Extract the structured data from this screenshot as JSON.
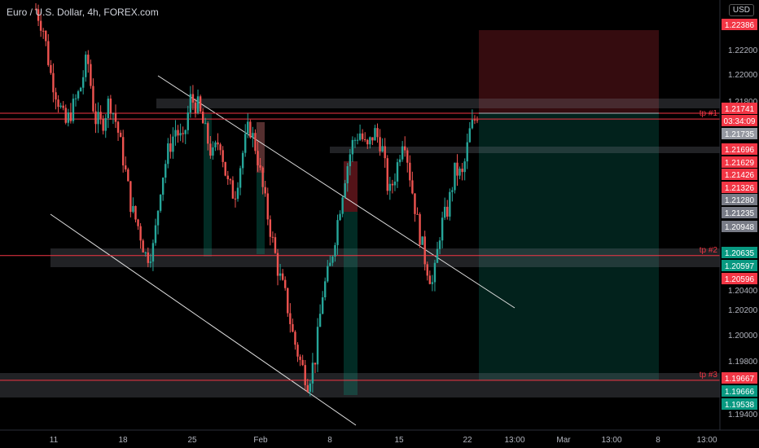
{
  "header": {
    "title": "Euro / U.S. Dollar, 4h, FOREX.com",
    "currency": "USD"
  },
  "colors": {
    "up": "#26a69a",
    "down": "#ef5350",
    "red_line": "#f23645",
    "bg": "#000000",
    "axis_text": "#b2b5be"
  },
  "chart_data": {
    "type": "candlestick",
    "ylim": [
      1.1928,
      1.2262
    ],
    "y_ticks": [
      "1.22200",
      "1.22000",
      "1.21800",
      "1.20400",
      "1.20200",
      "1.20000",
      "1.19800",
      "1.19400"
    ],
    "x_ticks": [
      "11",
      "18",
      "25",
      "Feb",
      "8",
      "15",
      "22",
      "13:00",
      "Mar",
      "13:00",
      "8",
      "13:00"
    ],
    "levels": [
      {
        "label": "tp #1",
        "value": 1.21696
      },
      {
        "label": "tp #2",
        "value": 1.20635
      },
      {
        "label": "tp #3",
        "value": 1.19667
      },
      {
        "label": "",
        "value": 1.21741
      }
    ],
    "price_labels": [
      {
        "value": "1.22386",
        "color": "#f23645"
      },
      {
        "value": "1.21741",
        "color": "#f23645"
      },
      {
        "value": "03:34:09",
        "color": "#f23645"
      },
      {
        "value": "1.21735",
        "color": "#9598a1"
      },
      {
        "value": "1.21696",
        "color": "#f23645"
      },
      {
        "value": "1.21629",
        "color": "#f23645"
      },
      {
        "value": "1.21426",
        "color": "#f23645"
      },
      {
        "value": "1.21326",
        "color": "#f23645"
      },
      {
        "value": "1.21280",
        "color": "#787b86"
      },
      {
        "value": "1.21235",
        "color": "#787b86"
      },
      {
        "value": "1.20948",
        "color": "#787b86"
      },
      {
        "value": "1.20635",
        "color": "#089981"
      },
      {
        "value": "1.20597",
        "color": "#089981"
      },
      {
        "value": "1.20596",
        "color": "#f23645"
      },
      {
        "value": "1.19667",
        "color": "#f23645"
      },
      {
        "value": "1.19666",
        "color": "#089981"
      },
      {
        "value": "1.19538",
        "color": "#089981"
      }
    ],
    "trade": {
      "entry": 1.21741,
      "stop": 1.22386,
      "target": 1.19667
    },
    "close_path": [
      1.2255,
      1.224,
      1.2205,
      1.2185,
      1.2165,
      1.2178,
      1.2192,
      1.2218,
      1.217,
      1.2165,
      1.2185,
      1.2165,
      1.2135,
      1.21,
      1.2085,
      1.2062,
      1.207,
      1.212,
      1.2145,
      1.2162,
      1.215,
      1.2185,
      1.218,
      1.216,
      1.214,
      1.2155,
      1.212,
      1.211,
      1.214,
      1.2165,
      1.2145,
      1.211,
      1.208,
      1.205,
      1.203,
      1.2,
      1.198,
      1.1965,
      1.1985,
      1.2035,
      1.2055,
      1.209,
      1.2125,
      1.215,
      1.216,
      1.2145,
      1.216,
      1.215,
      1.211,
      1.213,
      1.216,
      1.212,
      1.2085,
      1.2058,
      1.204,
      1.2085,
      1.21,
      1.213,
      1.2125,
      1.216,
      1.2174
    ]
  }
}
